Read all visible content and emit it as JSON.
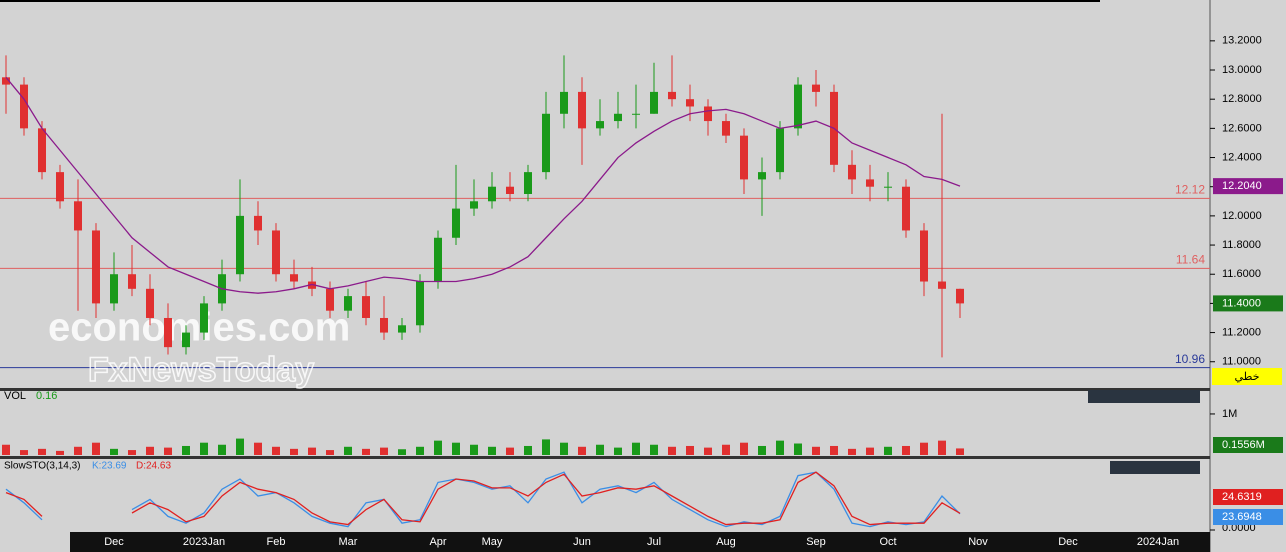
{
  "chart_data": [
    {
      "type": "candlestick",
      "categories": [
        null,
        null,
        null,
        null,
        null,
        null,
        "Dec",
        null,
        null,
        null,
        null,
        "2023Jan",
        null,
        null,
        null,
        "Feb",
        null,
        null,
        null,
        "Mar",
        null,
        null,
        null,
        null,
        "Apr",
        null,
        null,
        "May",
        null,
        null,
        null,
        null,
        "Jun",
        null,
        null,
        null,
        "Jul",
        null,
        null,
        null,
        "Aug",
        null,
        null,
        null,
        null,
        "Sep",
        null,
        null,
        null,
        "Oct",
        null,
        null,
        null,
        null,
        "Nov",
        null,
        null,
        null,
        null,
        "Dec",
        null,
        null,
        null,
        null,
        "2024Jan"
      ],
      "open": [
        12.95,
        12.9,
        12.6,
        12.3,
        12.1,
        11.9,
        11.4,
        11.6,
        11.5,
        11.3,
        11.1,
        11.2,
        11.4,
        11.6,
        12.0,
        11.9,
        11.6,
        11.55,
        11.5,
        11.35,
        11.45,
        11.3,
        11.2,
        11.25,
        11.55,
        11.85,
        12.05,
        12.1,
        12.2,
        12.15,
        12.3,
        12.7,
        12.85,
        12.6,
        12.65,
        12.7,
        12.7,
        12.85,
        12.8,
        12.75,
        12.65,
        12.55,
        12.25,
        12.3,
        12.6,
        12.9,
        12.85,
        12.35,
        12.25,
        12.2,
        12.2,
        11.9,
        11.55,
        11.5,
        null,
        null,
        null,
        null,
        null,
        null,
        null,
        null,
        null,
        null,
        null
      ],
      "high": [
        13.1,
        12.95,
        12.65,
        12.35,
        12.25,
        11.95,
        11.75,
        11.8,
        11.6,
        11.4,
        11.25,
        11.45,
        11.7,
        12.25,
        12.1,
        11.95,
        11.7,
        11.65,
        11.55,
        11.5,
        11.55,
        11.45,
        11.3,
        11.6,
        11.9,
        12.35,
        12.25,
        12.3,
        12.3,
        12.35,
        12.85,
        13.1,
        12.95,
        12.8,
        12.85,
        12.9,
        13.05,
        13.1,
        12.9,
        12.8,
        12.7,
        12.6,
        12.4,
        12.65,
        12.95,
        13.0,
        12.9,
        12.45,
        12.35,
        12.3,
        12.25,
        11.95,
        12.7,
        11.5,
        null,
        null,
        null,
        null,
        null,
        null,
        null,
        null,
        null,
        null,
        null
      ],
      "low": [
        12.7,
        12.55,
        12.25,
        12.05,
        11.35,
        11.3,
        11.35,
        11.45,
        11.25,
        11.05,
        11.05,
        11.15,
        11.35,
        11.55,
        11.8,
        11.55,
        11.5,
        11.45,
        11.3,
        11.3,
        11.25,
        11.15,
        11.15,
        11.2,
        11.5,
        11.8,
        12.0,
        12.05,
        12.1,
        12.1,
        12.25,
        12.6,
        12.35,
        12.55,
        12.6,
        12.6,
        12.7,
        12.75,
        12.65,
        12.55,
        12.5,
        12.15,
        12.0,
        12.25,
        12.55,
        12.75,
        12.3,
        12.15,
        12.1,
        12.1,
        11.85,
        11.45,
        11.03,
        11.3,
        null,
        null,
        null,
        null,
        null,
        null,
        null,
        null,
        null,
        null,
        null
      ],
      "close": [
        12.9,
        12.6,
        12.3,
        12.1,
        11.9,
        11.4,
        11.6,
        11.5,
        11.3,
        11.1,
        11.2,
        11.4,
        11.6,
        12.0,
        11.9,
        11.6,
        11.55,
        11.5,
        11.35,
        11.45,
        11.3,
        11.2,
        11.25,
        11.55,
        11.85,
        12.05,
        12.1,
        12.2,
        12.15,
        12.3,
        12.7,
        12.85,
        12.6,
        12.65,
        12.7,
        12.7,
        12.85,
        12.8,
        12.75,
        12.65,
        12.55,
        12.25,
        12.3,
        12.6,
        12.9,
        12.85,
        12.35,
        12.25,
        12.2,
        12.2,
        11.9,
        11.55,
        11.5,
        11.4,
        null,
        null,
        null,
        null,
        null,
        null,
        null,
        null,
        null,
        null,
        null
      ],
      "ma": [
        12.95,
        12.8,
        12.6,
        12.45,
        12.3,
        12.15,
        12.0,
        11.85,
        11.75,
        11.65,
        11.6,
        11.55,
        11.5,
        11.48,
        11.47,
        11.48,
        11.5,
        11.53,
        11.5,
        11.52,
        11.55,
        11.58,
        11.57,
        11.55,
        11.55,
        11.55,
        11.57,
        11.6,
        11.65,
        11.72,
        11.85,
        11.98,
        12.1,
        12.25,
        12.4,
        12.5,
        12.58,
        12.65,
        12.7,
        12.72,
        12.73,
        12.7,
        12.65,
        12.6,
        12.62,
        12.65,
        12.6,
        12.5,
        12.45,
        12.4,
        12.35,
        12.27,
        12.25,
        12.204,
        null,
        null,
        null,
        null,
        null,
        null,
        null,
        null,
        null,
        null,
        null
      ],
      "ma_color": "#8b1a8b",
      "up_color": "#1a9a1a",
      "down_color": "#e03030",
      "ma_last_label": "12.2040",
      "last_label": "11.4000",
      "levels": [
        {
          "value": 12.12,
          "color": "#e06060"
        },
        {
          "value": 11.64,
          "color": "#e06060"
        },
        {
          "value": 10.96,
          "color": "#2a3a9a"
        }
      ],
      "ylim": [
        10.82,
        13.48
      ],
      "yticks": [
        {
          "value": 11,
          "label": "11.0000"
        },
        {
          "value": 11.2,
          "label": "11.2000"
        },
        {
          "value": 11.4,
          "label": "11.4000"
        },
        {
          "value": 11.6,
          "label": "11.6000"
        },
        {
          "value": 11.8,
          "label": "11.8000"
        },
        {
          "value": 12,
          "label": "12.0000"
        },
        {
          "value": 12.2,
          "label": "12.2000"
        },
        {
          "value": 12.4,
          "label": "12.4000"
        },
        {
          "value": 12.6,
          "label": "12.6000"
        },
        {
          "value": 12.8,
          "label": "12.8000"
        },
        {
          "value": 13,
          "label": "13.0000"
        },
        {
          "value": 13.2,
          "label": "13.2000"
        }
      ],
      "badge": "خطي",
      "watermark": [
        "economies.com",
        "FxNewsToday"
      ]
    },
    {
      "type": "bar",
      "name": "VOL",
      "header_value": "0.16",
      "color": "#1a9a1a",
      "down_color": "#e03030",
      "values": [
        0.25,
        0.12,
        0.15,
        0.1,
        0.2,
        0.3,
        0.15,
        0.12,
        0.2,
        0.18,
        0.22,
        0.3,
        0.25,
        0.4,
        0.3,
        0.2,
        0.15,
        0.18,
        0.12,
        0.2,
        0.15,
        0.18,
        0.14,
        0.2,
        0.35,
        0.3,
        0.25,
        0.2,
        0.18,
        0.22,
        0.38,
        0.3,
        0.2,
        0.25,
        0.18,
        0.3,
        0.25,
        0.2,
        0.22,
        0.18,
        0.25,
        0.3,
        0.22,
        0.35,
        0.28,
        0.2,
        0.22,
        0.15,
        0.18,
        0.2,
        0.22,
        0.3,
        0.35,
        0.16,
        null,
        null,
        null,
        null,
        null,
        null,
        null,
        null,
        null,
        null,
        null
      ],
      "last_label": "0.1556M",
      "ylim": [
        0,
        1.34
      ],
      "yticks": [
        {
          "value": 1,
          "label": "1M"
        }
      ]
    },
    {
      "type": "line",
      "name": "SlowSTO(3,14,3)",
      "k_label": "K:23.69",
      "d_label": "D:24.63",
      "series": [
        {
          "name": "K",
          "color": "#3a8ee6",
          "last_label": "23.6948",
          "values": [
            60,
            40,
            15,
            null,
            null,
            null,
            null,
            30,
            45,
            20,
            10,
            25,
            60,
            75,
            50,
            55,
            40,
            20,
            10,
            5,
            40,
            45,
            10,
            15,
            70,
            75,
            70,
            60,
            65,
            40,
            75,
            85,
            40,
            60,
            65,
            55,
            70,
            45,
            30,
            15,
            5,
            12,
            8,
            20,
            80,
            85,
            60,
            10,
            5,
            12,
            8,
            12,
            50,
            23.69,
            null,
            null,
            null,
            null,
            null,
            null,
            null,
            null,
            null,
            null,
            null
          ]
        },
        {
          "name": "D",
          "color": "#e02020",
          "last_label": "24.6319",
          "values": [
            55,
            45,
            20,
            null,
            null,
            null,
            null,
            25,
            40,
            30,
            12,
            20,
            50,
            70,
            60,
            55,
            45,
            25,
            12,
            8,
            30,
            45,
            15,
            12,
            60,
            75,
            72,
            62,
            62,
            50,
            70,
            82,
            50,
            55,
            62,
            60,
            65,
            50,
            35,
            20,
            8,
            10,
            10,
            15,
            70,
            85,
            65,
            20,
            8,
            10,
            10,
            10,
            40,
            24.63,
            null,
            null,
            null,
            null,
            null,
            null,
            null,
            null,
            null,
            null,
            null
          ]
        }
      ],
      "ylim": [
        0,
        100
      ],
      "yticks": [
        {
          "value": 0,
          "label": "0.0000"
        }
      ]
    }
  ]
}
